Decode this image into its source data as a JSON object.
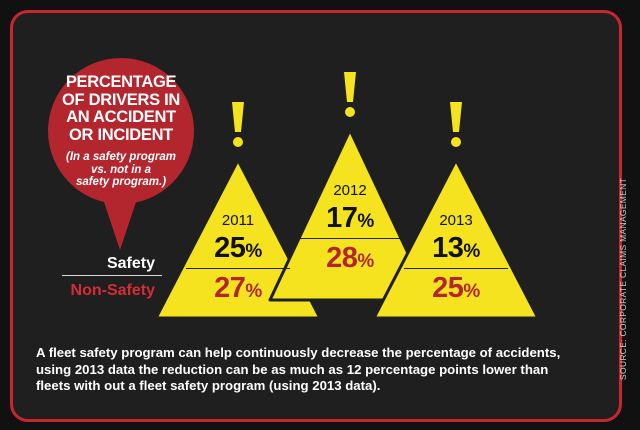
{
  "bubble": {
    "title": "PERCENTAGE\nOF DRIVERS IN\nAN ACCIDENT\nOR INCIDENT",
    "subtitle": "(In a safety program\nvs. not in a\nsafety program.)"
  },
  "row_labels": {
    "safety": "Safety",
    "non_safety": "Non-Safety"
  },
  "footer_text": "A fleet safety program can help continuously decrease the percentage of accidents, using 2013 data the reduction can be as much as 12 percentage points lower than fleets with out a fleet safety program (using 2013 data).",
  "source_text": "SOURCE: CORPORATE CLAIMS MANAGEMENT",
  "colors": {
    "red": "#b3262e",
    "yellow": "#f5e31f",
    "background": "#1f1f1f"
  },
  "chart_data": {
    "type": "table",
    "categories": [
      "2011",
      "2012",
      "2013"
    ],
    "series": [
      {
        "name": "Safety",
        "values": [
          25,
          17,
          13
        ]
      },
      {
        "name": "Non-Safety",
        "values": [
          27,
          28,
          25
        ]
      }
    ],
    "unit": "%"
  }
}
